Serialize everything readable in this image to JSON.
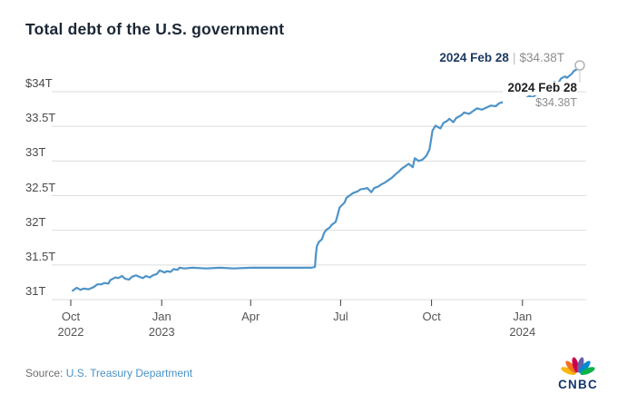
{
  "title": "Total debt of the U.S. government",
  "annotation": {
    "date": "2024 Feb 28",
    "separator": "|",
    "value": "$34.38T"
  },
  "callout": {
    "date": "2024 Feb 28",
    "value": "$34.38T"
  },
  "source": {
    "prefix": "Source: ",
    "link": "U.S. Treasury Department"
  },
  "logo": {
    "text": "CNBC"
  },
  "colors": {
    "line": "#4e93c8",
    "grid": "#dedede",
    "tick": "#3c3c3c",
    "marker_stroke": "#b5b5b5",
    "leader": "#c7c7c7",
    "peacock": [
      "#FCB711",
      "#F37021",
      "#CC004C",
      "#6460AA",
      "#0089D0",
      "#0DB14B"
    ]
  },
  "chart_data": {
    "type": "line",
    "title": "Total debt of the U.S. government",
    "unit": "trillions of US dollars",
    "grid": "horizontal",
    "ylim": [
      31,
      34.5
    ],
    "x_range": [
      "2022-10-01",
      "2024-02-28"
    ],
    "y_ticks": [
      {
        "value": 34,
        "label": "$34T"
      },
      {
        "value": 33.5,
        "label": "33.5T"
      },
      {
        "value": 33,
        "label": "33T"
      },
      {
        "value": 32.5,
        "label": "32.5T"
      },
      {
        "value": 32,
        "label": "32T"
      },
      {
        "value": 31.5,
        "label": "31.5T"
      },
      {
        "value": 31,
        "label": "31T"
      }
    ],
    "x_ticks": [
      {
        "date": "2022-10-01",
        "line1": "Oct",
        "line2": "2022"
      },
      {
        "date": "2023-01-01",
        "line1": "Jan",
        "line2": "2023"
      },
      {
        "date": "2023-04-01",
        "line1": "Apr",
        "line2": ""
      },
      {
        "date": "2023-07-01",
        "line1": "Jul",
        "line2": ""
      },
      {
        "date": "2023-10-01",
        "line1": "Oct",
        "line2": ""
      },
      {
        "date": "2024-01-01",
        "line1": "Jan",
        "line2": "2024"
      }
    ],
    "last_point": {
      "date": "2024-02-28",
      "value": 34.38
    },
    "points": [
      [
        "2022-10-03",
        31.13
      ],
      [
        "2022-10-07",
        31.17
      ],
      [
        "2022-10-11",
        31.14
      ],
      [
        "2022-10-14",
        31.16
      ],
      [
        "2022-10-19",
        31.15
      ],
      [
        "2022-10-24",
        31.18
      ],
      [
        "2022-10-28",
        31.22
      ],
      [
        "2022-11-01",
        31.22
      ],
      [
        "2022-11-04",
        31.24
      ],
      [
        "2022-11-08",
        31.23
      ],
      [
        "2022-11-10",
        31.28
      ],
      [
        "2022-11-15",
        31.32
      ],
      [
        "2022-11-18",
        31.31
      ],
      [
        "2022-11-22",
        31.34
      ],
      [
        "2022-11-25",
        31.3
      ],
      [
        "2022-11-29",
        31.29
      ],
      [
        "2022-12-02",
        31.33
      ],
      [
        "2022-12-06",
        31.35
      ],
      [
        "2022-12-09",
        31.33
      ],
      [
        "2022-12-13",
        31.31
      ],
      [
        "2022-12-16",
        31.34
      ],
      [
        "2022-12-20",
        31.32
      ],
      [
        "2022-12-23",
        31.35
      ],
      [
        "2022-12-27",
        31.37
      ],
      [
        "2022-12-30",
        31.42
      ],
      [
        "2023-01-04",
        31.39
      ],
      [
        "2023-01-06",
        31.41
      ],
      [
        "2023-01-10",
        31.4
      ],
      [
        "2023-01-13",
        31.44
      ],
      [
        "2023-01-17",
        31.43
      ],
      [
        "2023-01-19",
        31.46
      ],
      [
        "2023-01-24",
        31.45
      ],
      [
        "2023-02-01",
        31.46
      ],
      [
        "2023-02-15",
        31.45
      ],
      [
        "2023-03-01",
        31.46
      ],
      [
        "2023-03-15",
        31.45
      ],
      [
        "2023-04-01",
        31.46
      ],
      [
        "2023-04-15",
        31.46
      ],
      [
        "2023-05-01",
        31.46
      ],
      [
        "2023-05-15",
        31.46
      ],
      [
        "2023-06-01",
        31.46
      ],
      [
        "2023-06-05",
        31.47
      ],
      [
        "2023-06-06",
        31.66
      ],
      [
        "2023-06-07",
        31.77
      ],
      [
        "2023-06-09",
        31.83
      ],
      [
        "2023-06-12",
        31.87
      ],
      [
        "2023-06-14",
        31.95
      ],
      [
        "2023-06-16",
        32.0
      ],
      [
        "2023-06-20",
        32.04
      ],
      [
        "2023-06-22",
        32.08
      ],
      [
        "2023-06-26",
        32.12
      ],
      [
        "2023-06-28",
        32.22
      ],
      [
        "2023-06-30",
        32.33
      ],
      [
        "2023-07-05",
        32.4
      ],
      [
        "2023-07-07",
        32.47
      ],
      [
        "2023-07-11",
        32.51
      ],
      [
        "2023-07-14",
        32.54
      ],
      [
        "2023-07-18",
        32.56
      ],
      [
        "2023-07-21",
        32.59
      ],
      [
        "2023-07-25",
        32.6
      ],
      [
        "2023-07-28",
        32.61
      ],
      [
        "2023-08-01",
        32.55
      ],
      [
        "2023-08-04",
        32.61
      ],
      [
        "2023-08-08",
        32.63
      ],
      [
        "2023-08-11",
        32.66
      ],
      [
        "2023-08-15",
        32.69
      ],
      [
        "2023-08-18",
        32.72
      ],
      [
        "2023-08-22",
        32.76
      ],
      [
        "2023-08-25",
        32.8
      ],
      [
        "2023-08-29",
        32.85
      ],
      [
        "2023-09-01",
        32.89
      ],
      [
        "2023-09-06",
        32.94
      ],
      [
        "2023-09-08",
        32.96
      ],
      [
        "2023-09-12",
        32.91
      ],
      [
        "2023-09-14",
        33.04
      ],
      [
        "2023-09-18",
        33.0
      ],
      [
        "2023-09-22",
        33.02
      ],
      [
        "2023-09-26",
        33.08
      ],
      [
        "2023-09-29",
        33.17
      ],
      [
        "2023-10-02",
        33.44
      ],
      [
        "2023-10-05",
        33.51
      ],
      [
        "2023-10-10",
        33.47
      ],
      [
        "2023-10-13",
        33.55
      ],
      [
        "2023-10-17",
        33.58
      ],
      [
        "2023-10-19",
        33.61
      ],
      [
        "2023-10-23",
        33.56
      ],
      [
        "2023-10-26",
        33.62
      ],
      [
        "2023-10-31",
        33.66
      ],
      [
        "2023-11-03",
        33.7
      ],
      [
        "2023-11-08",
        33.68
      ],
      [
        "2023-11-13",
        33.73
      ],
      [
        "2023-11-16",
        33.76
      ],
      [
        "2023-11-21",
        33.74
      ],
      [
        "2023-11-27",
        33.78
      ],
      [
        "2023-11-30",
        33.8
      ],
      [
        "2023-12-05",
        33.79
      ],
      [
        "2023-12-08",
        33.83
      ],
      [
        "2023-12-12",
        33.85
      ],
      [
        "2023-12-15",
        33.83
      ],
      [
        "2023-12-19",
        33.87
      ],
      [
        "2023-12-22",
        33.86
      ],
      [
        "2023-12-27",
        33.88
      ],
      [
        "2023-12-29",
        33.91
      ],
      [
        "2024-01-03",
        33.89
      ],
      [
        "2024-01-08",
        33.94
      ],
      [
        "2024-01-11",
        33.92
      ],
      [
        "2024-01-16",
        33.97
      ],
      [
        "2024-01-19",
        34.01
      ],
      [
        "2024-01-23",
        34.06
      ],
      [
        "2024-01-25",
        34.04
      ],
      [
        "2024-01-30",
        34.11
      ],
      [
        "2024-02-02",
        34.14
      ],
      [
        "2024-02-06",
        34.12
      ],
      [
        "2024-02-09",
        34.19
      ],
      [
        "2024-02-13",
        34.22
      ],
      [
        "2024-02-15",
        34.2
      ],
      [
        "2024-02-20",
        34.26
      ],
      [
        "2024-02-22",
        34.3
      ],
      [
        "2024-02-26",
        34.33
      ],
      [
        "2024-02-28",
        34.38
      ]
    ]
  }
}
